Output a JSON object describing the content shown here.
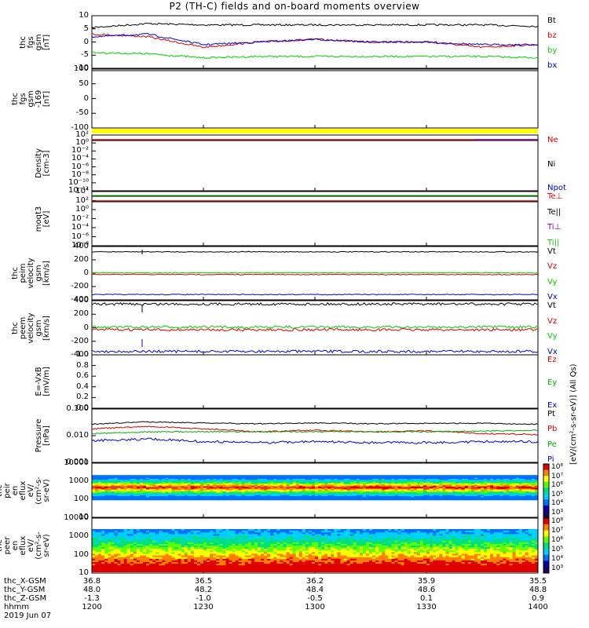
{
  "title": "P2 (TH-C) fields and on-board moments overview",
  "panels": [
    {
      "id": "fgs",
      "ylabel": [
        "thc",
        "fgs",
        "gsm",
        "[nT]"
      ],
      "ticks": [
        "10",
        "5",
        "0",
        "-5",
        "-10"
      ],
      "legend": [
        "Bt",
        "bz",
        "by",
        "bx"
      ],
      "colors": [
        "#000000",
        "#dd0000",
        "#00cc00",
        "#0000cc"
      ]
    },
    {
      "id": "fgs-big",
      "ylabel": [
        "thc",
        "fgs",
        "gsm",
        "-169",
        "[nT]"
      ],
      "ticks": [
        "100",
        "50",
        "0",
        "-50",
        "-100"
      ],
      "legend": [],
      "colors": []
    },
    {
      "id": "density",
      "ylabel": [
        "Density",
        "[cm-3]"
      ],
      "ticks": [
        "10²",
        "10⁰",
        "10⁻²",
        "10⁻⁴",
        "10⁻⁶",
        "10⁻⁸",
        "10⁻¹⁰",
        "10⁻¹²"
      ],
      "legend": [
        "Ne",
        "Ni",
        "Npot"
      ],
      "colors": [
        "#dd0000",
        "#000000",
        "#0000cc"
      ]
    },
    {
      "id": "temp",
      "ylabel": [
        "moqt3",
        "[eV]"
      ],
      "ticks": [
        "10⁴",
        "10²",
        "10⁰",
        "10⁻²",
        "10⁻⁴",
        "10⁻⁶",
        "10⁻⁸"
      ],
      "legend": [
        "Te⊥",
        "Te||",
        "Ti⊥",
        "Ti||"
      ],
      "colors": [
        "#dd0000",
        "#000000",
        "#8800aa",
        "#00cc00"
      ]
    },
    {
      "id": "peim",
      "ylabel": [
        "thc",
        "peim",
        "velocity",
        "gsm",
        "[km/s]"
      ],
      "ticks": [
        "400",
        "200",
        "0",
        "-200",
        "-400"
      ],
      "legend": [
        "Vt",
        "Vz",
        "Vy",
        "Vx"
      ],
      "colors": [
        "#000000",
        "#dd0000",
        "#00cc00",
        "#0000cc"
      ]
    },
    {
      "id": "peem",
      "ylabel": [
        "thc",
        "peem",
        "velocity",
        "gsm",
        "[km/s]"
      ],
      "ticks": [
        "400",
        "200",
        "0",
        "-200",
        "-400"
      ],
      "legend": [
        "Vt",
        "Vz",
        "Vy",
        "Vx"
      ],
      "colors": [
        "#000000",
        "#dd0000",
        "#00cc00",
        "#0000cc"
      ]
    },
    {
      "id": "efield",
      "ylabel": [
        "E=-VxB",
        "[mV/m]"
      ],
      "ticks": [
        "1.0",
        "0.8",
        "0.6",
        "0.4",
        "0.2",
        "0.0"
      ],
      "legend": [
        "Ez",
        "Ey",
        "Ex"
      ],
      "colors": [
        "#dd0000",
        "#00aa00",
        "#0000cc"
      ]
    },
    {
      "id": "pressure",
      "ylabel": [
        "Pressure",
        "[nPa]"
      ],
      "ticks": [
        "0.100",
        "0.010",
        "0.001"
      ],
      "legend": [
        "Pt",
        "Pb",
        "Pe",
        "Pi"
      ],
      "colors": [
        "#000000",
        "#dd0000",
        "#00aa00",
        "#0000cc"
      ]
    },
    {
      "id": "peir",
      "ylabel": [
        "thc",
        "peir",
        "en",
        "eflux",
        "eV/",
        "(cm²-s-",
        "sr-eV)"
      ],
      "ticks": [
        "10000",
        "1000",
        "100",
        "10"
      ],
      "legend": [],
      "colors": []
    },
    {
      "id": "peer",
      "ylabel": [
        "thc",
        "peer",
        "en",
        "eflux",
        "eV/",
        "(cm²-s-",
        "sr-eV)"
      ],
      "ticks": [
        "10000",
        "1000",
        "100",
        "10"
      ],
      "legend": [],
      "colors": []
    }
  ],
  "colorbar": {
    "ion_ticks": [
      "10⁸",
      "10⁷",
      "10⁶",
      "10⁵",
      "10⁴",
      "10³"
    ],
    "elec_ticks": [
      "10⁸",
      "10⁷",
      "10⁶",
      "10⁵",
      "10⁴",
      "10³"
    ],
    "title": "[eV/(cm²-s-sr-eV)] (All Qs)"
  },
  "footer": {
    "labels": [
      "thc_X-GSM",
      "thc_Y-GSM",
      "thc_Z-GSM",
      "hhmm",
      "2019 Jun 07"
    ],
    "x_gsm": [
      "36.8",
      "36.5",
      "36.2",
      "35.9",
      "35.5"
    ],
    "y_gsm": [
      "48.0",
      "48.2",
      "48.4",
      "48.6",
      "48.8"
    ],
    "z_gsm": [
      "-1.3",
      "-1.0",
      "-0.5",
      "0.1",
      "0.9"
    ],
    "hhmm": [
      "1200",
      "1230",
      "1300",
      "1330",
      "1400"
    ]
  },
  "chart_data": {
    "type": "line",
    "title": "P2 (TH-C) fields and on-board moments overview",
    "x_ticks": [
      "1200",
      "1230",
      "1300",
      "1330",
      "1400"
    ],
    "date": "2019 Jun 07",
    "panels": [
      {
        "ylabel": "thc fgs gsm [nT]",
        "ylim": [
          -10,
          10
        ],
        "series": [
          {
            "name": "Bt",
            "values": [
              5.5,
              7,
              6.5,
              6.5,
              6.5,
              6.5,
              6.5,
              6.5,
              6
            ]
          },
          {
            "name": "bz",
            "values": [
              3,
              2,
              -2,
              0,
              1,
              0,
              0,
              -2,
              -1
            ]
          },
          {
            "name": "by",
            "values": [
              -4,
              -4.5,
              -6,
              -5.5,
              -5.5,
              -5.5,
              -5.5,
              -5.5,
              -6
            ]
          },
          {
            "name": "bx",
            "values": [
              2,
              3,
              -1,
              0,
              1,
              0,
              0,
              -1,
              -1
            ]
          }
        ]
      },
      {
        "ylabel": "thc fgs gsm -169 [nT]",
        "ylim": [
          -125,
          125
        ],
        "series": []
      },
      {
        "ylabel": "Density [cm-3]",
        "scale": "log",
        "series": [
          {
            "name": "Ne",
            "values": [
              1,
              1,
              1,
              1,
              1,
              1,
              1,
              1,
              1
            ]
          }
        ]
      },
      {
        "ylabel": "moqt3 [eV]",
        "scale": "log",
        "series": [
          {
            "name": "Te||",
            "values": [
              10000,
              10000,
              10000,
              10000,
              10000,
              10000,
              10000,
              10000,
              10000
            ]
          },
          {
            "name": "Te⊥",
            "values": [
              1000,
              1000,
              1000,
              1000,
              1000,
              1000,
              1000,
              1000,
              1000
            ]
          }
        ]
      },
      {
        "ylabel": "thc peim velocity gsm [km/s]",
        "ylim": [
          -400,
          400
        ],
        "series": [
          {
            "name": "Vt",
            "values": [
              320,
              320,
              320,
              320,
              320,
              320,
              320,
              320,
              320
            ]
          },
          {
            "name": "Vz",
            "values": [
              -20,
              -20,
              -20,
              -20,
              -20,
              -20,
              -20,
              -20,
              -20
            ]
          },
          {
            "name": "Vy",
            "values": [
              5,
              5,
              5,
              5,
              5,
              5,
              5,
              5,
              5
            ]
          },
          {
            "name": "Vx",
            "values": [
              -320,
              -320,
              -320,
              -320,
              -320,
              -320,
              -320,
              -320,
              -320
            ]
          }
        ]
      },
      {
        "ylabel": "thc peem velocity gsm [km/s]",
        "ylim": [
          -400,
          400
        ],
        "series": [
          {
            "name": "Vt",
            "values": [
              350,
              350,
              350,
              350,
              350,
              350,
              350,
              350,
              350
            ]
          },
          {
            "name": "Vz",
            "values": [
              -30,
              -30,
              -30,
              -30,
              -30,
              -30,
              -30,
              -30,
              -30
            ]
          },
          {
            "name": "Vy",
            "values": [
              10,
              10,
              10,
              10,
              10,
              10,
              10,
              10,
              10
            ]
          },
          {
            "name": "Vx",
            "values": [
              -350,
              -350,
              -350,
              -350,
              -350,
              -350,
              -350,
              -350,
              -350
            ]
          }
        ]
      },
      {
        "ylabel": "E=-VxB [mV/m]",
        "ylim": [
          0,
          1
        ],
        "series": []
      },
      {
        "ylabel": "Pressure [nPa]",
        "scale": "log",
        "series": [
          {
            "name": "Pt",
            "values": [
              0.027,
              0.033,
              0.03,
              0.028,
              0.03,
              0.028,
              0.029,
              0.029,
              0.027
            ]
          },
          {
            "name": "Pb",
            "values": [
              0.018,
              0.022,
              0.018,
              0.014,
              0.016,
              0.014,
              0.015,
              0.012,
              0.011
            ]
          },
          {
            "name": "Pe",
            "values": [
              0.012,
              0.014,
              0.014,
              0.014,
              0.014,
              0.014,
              0.014,
              0.015,
              0.016
            ]
          },
          {
            "name": "Pi",
            "values": [
              0.0065,
              0.0075,
              0.006,
              0.0055,
              0.006,
              0.0055,
              0.0055,
              0.006,
              0.006
            ]
          }
        ]
      }
    ]
  }
}
